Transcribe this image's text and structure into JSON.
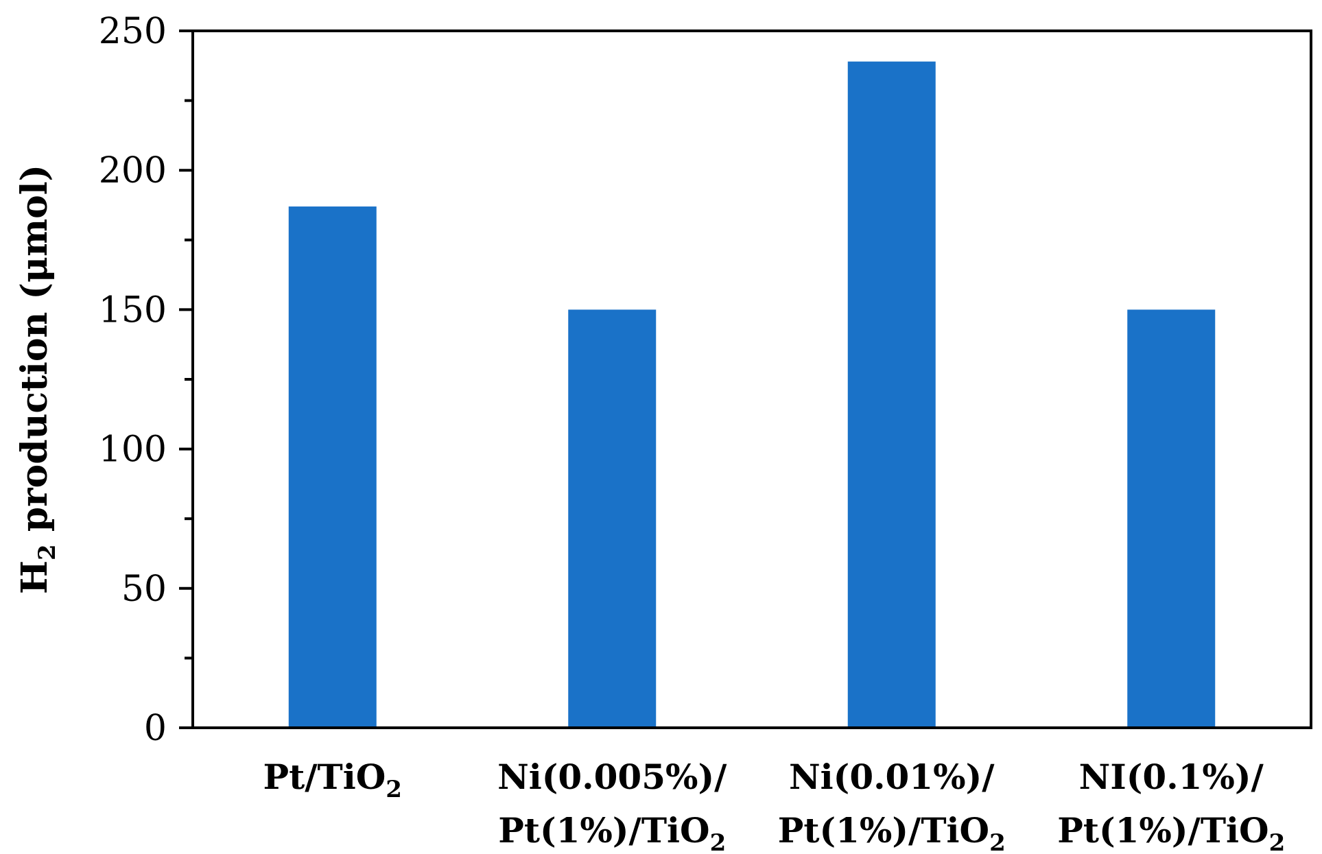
{
  "chart_data": {
    "type": "bar",
    "categories": [
      {
        "line1": "Pt/TiO",
        "line1_sub": "2",
        "line2": "",
        "line2_sub": ""
      },
      {
        "line1": "Ni(0.005%)/",
        "line1_sub": "",
        "line2": "Pt(1%)/TiO",
        "line2_sub": "2"
      },
      {
        "line1": "Ni(0.01%)/",
        "line1_sub": "",
        "line2": "Pt(1%)/TiO",
        "line2_sub": "2"
      },
      {
        "line1": "NI(0.1%)/",
        "line1_sub": "",
        "line2": "Pt(1%)/TiO",
        "line2_sub": "2"
      }
    ],
    "values": [
      187,
      150,
      239,
      150
    ],
    "ylabel": {
      "prefix": "H",
      "sub": "2",
      "rest": " production (μmol)"
    },
    "ylim": [
      0,
      250
    ],
    "yticks": [
      0,
      50,
      100,
      150,
      200,
      250
    ],
    "minor_ticks": [
      25,
      75,
      125,
      175,
      225
    ],
    "grid": false,
    "bar_color": "#1a72c8"
  }
}
